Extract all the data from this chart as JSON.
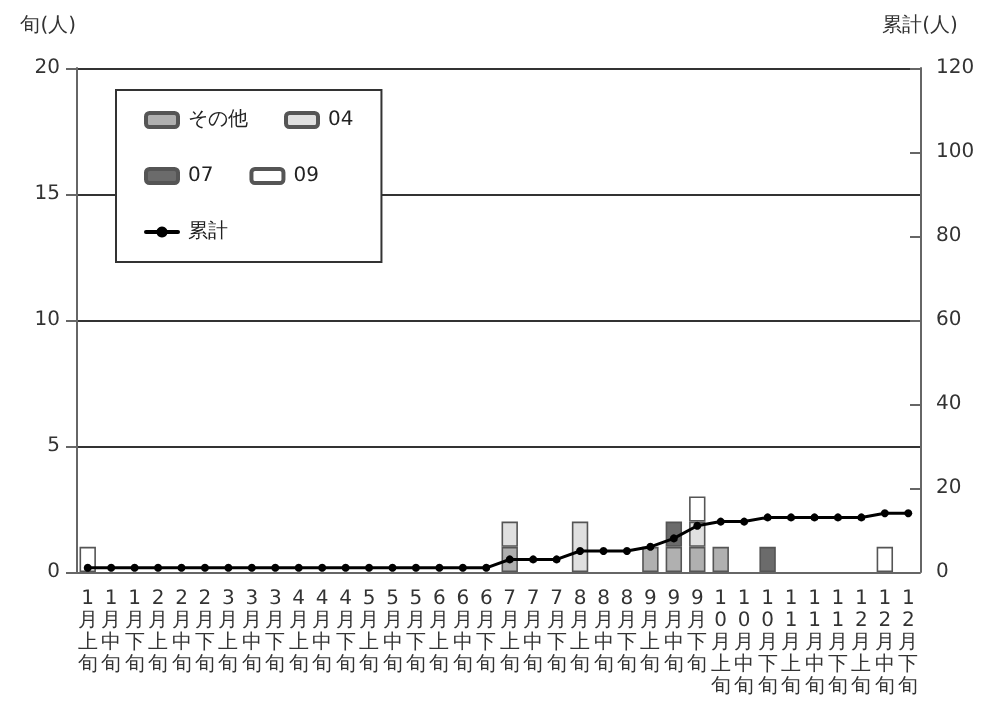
{
  "chart_data": {
    "type": "bar",
    "stacked": true,
    "ylabel": "旬(人)",
    "y2label": "累計(人)",
    "categories": [
      "1月上旬",
      "1月中旬",
      "1月下旬",
      "2月上旬",
      "2月中旬",
      "2月下旬",
      "3月上旬",
      "3月中旬",
      "3月下旬",
      "4月上旬",
      "4月中旬",
      "4月下旬",
      "5月上旬",
      "5月中旬",
      "5月下旬",
      "6月上旬",
      "6月中旬",
      "6月下旬",
      "7月上旬",
      "7月中旬",
      "7月下旬",
      "8月上旬",
      "8月中旬",
      "8月下旬",
      "9月上旬",
      "9月中旬",
      "9月下旬",
      "10月上旬",
      "10月中旬",
      "10月下旬",
      "11月上旬",
      "11月中旬",
      "11月下旬",
      "12月上旬",
      "12月中旬",
      "12月下旬"
    ],
    "series": [
      {
        "name": "その他",
        "color": "#b0b0b0",
        "values": [
          0,
          0,
          0,
          0,
          0,
          0,
          0,
          0,
          0,
          0,
          0,
          0,
          0,
          0,
          0,
          0,
          0,
          0,
          1,
          0,
          0,
          0,
          0,
          0,
          1,
          1,
          1,
          1,
          0,
          0,
          0,
          0,
          0,
          0,
          0,
          0
        ]
      },
      {
        "name": "04",
        "color": "#e0e0e0",
        "values": [
          0,
          0,
          0,
          0,
          0,
          0,
          0,
          0,
          0,
          0,
          0,
          0,
          0,
          0,
          0,
          0,
          0,
          0,
          1,
          0,
          0,
          2,
          0,
          0,
          0,
          0,
          1,
          0,
          0,
          0,
          0,
          0,
          0,
          0,
          0,
          0
        ]
      },
      {
        "name": "07",
        "color": "#6b6b6b",
        "values": [
          0,
          0,
          0,
          0,
          0,
          0,
          0,
          0,
          0,
          0,
          0,
          0,
          0,
          0,
          0,
          0,
          0,
          0,
          0,
          0,
          0,
          0,
          0,
          0,
          0,
          1,
          0,
          0,
          0,
          1,
          0,
          0,
          0,
          0,
          0,
          0
        ]
      },
      {
        "name": "09",
        "color": "#ffffff",
        "values": [
          1,
          0,
          0,
          0,
          0,
          0,
          0,
          0,
          0,
          0,
          0,
          0,
          0,
          0,
          0,
          0,
          0,
          0,
          0,
          0,
          0,
          0,
          0,
          0,
          0,
          0,
          1,
          0,
          0,
          0,
          0,
          0,
          0,
          0,
          1,
          0
        ]
      },
      {
        "name": "累計",
        "type": "line",
        "axis": "y2",
        "color": "#000000",
        "values": [
          1,
          1,
          1,
          1,
          1,
          1,
          1,
          1,
          1,
          1,
          1,
          1,
          1,
          1,
          1,
          1,
          1,
          1,
          3,
          3,
          3,
          5,
          5,
          5,
          6,
          8,
          11,
          12,
          12,
          13,
          13,
          13,
          13,
          13,
          14,
          14
        ]
      }
    ],
    "ylim": [
      0,
      20
    ],
    "yticks": [
      0,
      5,
      10,
      15,
      20
    ],
    "y2lim": [
      0,
      120
    ],
    "y2ticks": [
      0,
      20,
      40,
      60,
      80,
      100,
      120
    ],
    "grid": "y",
    "legend": "top left",
    "marker": "circle",
    "line_style": "solid"
  }
}
